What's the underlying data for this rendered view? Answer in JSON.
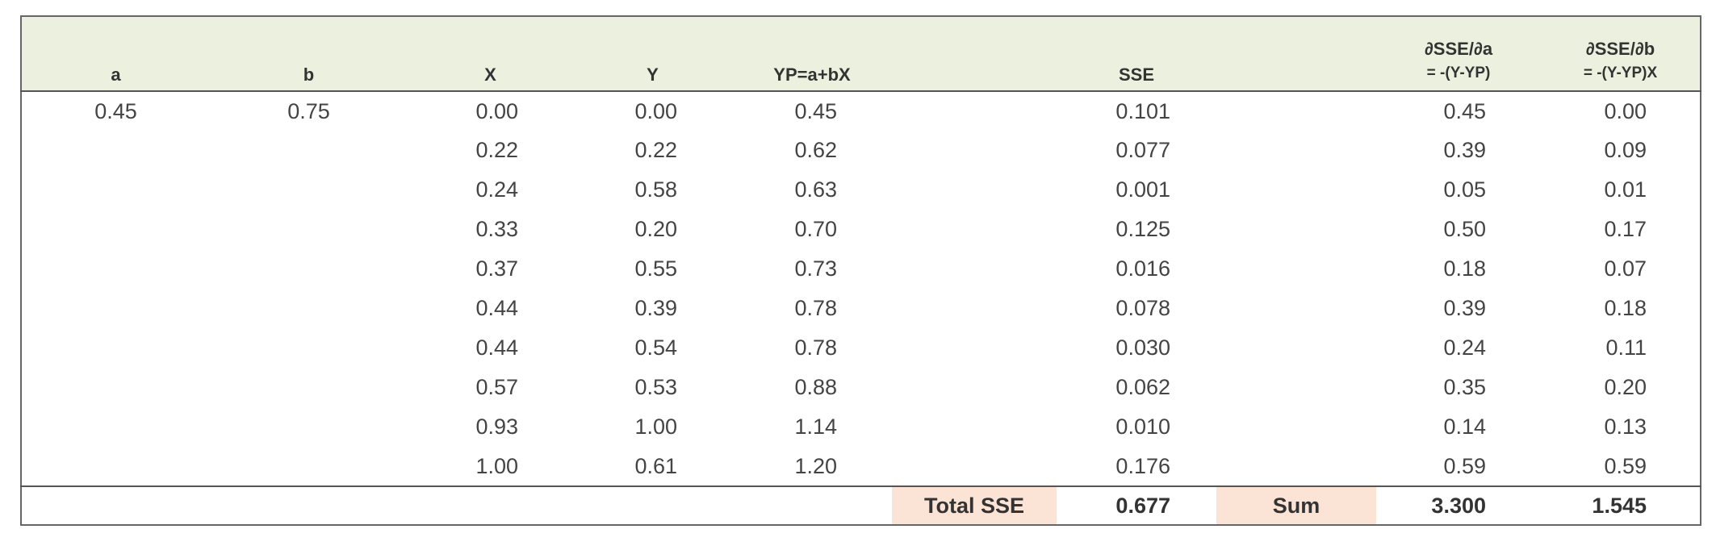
{
  "table": {
    "headers": [
      "a",
      "b",
      "X",
      "Y",
      "YP=a+bX",
      "SSE",
      [
        "∂SSE/∂a",
        "= -(Y-YP)"
      ],
      [
        "∂SSE/∂b",
        "= -(Y-YP)X"
      ]
    ],
    "a": "0.45",
    "b": "0.75",
    "rows": [
      [
        "0.00",
        "0.00",
        "0.45",
        "0.101",
        "0.45",
        "0.00"
      ],
      [
        "0.22",
        "0.22",
        "0.62",
        "0.077",
        "0.39",
        "0.09"
      ],
      [
        "0.24",
        "0.58",
        "0.63",
        "0.001",
        "0.05",
        "0.01"
      ],
      [
        "0.33",
        "0.20",
        "0.70",
        "0.125",
        "0.50",
        "0.17"
      ],
      [
        "0.37",
        "0.55",
        "0.73",
        "0.016",
        "0.18",
        "0.07"
      ],
      [
        "0.44",
        "0.39",
        "0.78",
        "0.078",
        "0.39",
        "0.18"
      ],
      [
        "0.44",
        "0.54",
        "0.78",
        "0.030",
        "0.24",
        "0.11"
      ],
      [
        "0.57",
        "0.53",
        "0.88",
        "0.062",
        "0.35",
        "0.20"
      ],
      [
        "0.93",
        "1.00",
        "1.14",
        "0.010",
        "0.14",
        "0.13"
      ],
      [
        "1.00",
        "0.61",
        "1.20",
        "0.176",
        "0.59",
        "0.59"
      ]
    ],
    "totals": {
      "total_sse_label": "Total SSE",
      "total_sse": "0.677",
      "sum_label": "Sum",
      "sum_a": "3.300",
      "sum_b": "1.545"
    }
  }
}
